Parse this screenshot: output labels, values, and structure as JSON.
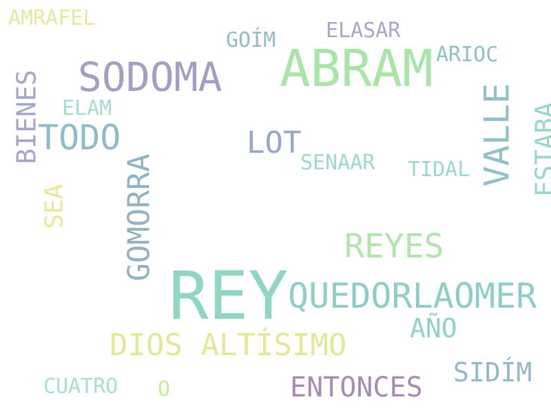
{
  "cloud": {
    "words": [
      {
        "text": "REY",
        "color": "#8fd8bc"
      },
      {
        "text": "ABRAM",
        "color": "#a8e6a8"
      },
      {
        "text": "SODOMA",
        "color": "#a39ec4"
      },
      {
        "text": "QUEDORLAOMER",
        "color": "#8ecec6"
      },
      {
        "text": "TODO",
        "color": "#8fbcc8"
      },
      {
        "text": "VALLE",
        "color": "#92bfc8"
      },
      {
        "text": "REYES",
        "color": "#b0e6ab"
      },
      {
        "text": "LOT",
        "color": "#9aa6c4"
      },
      {
        "text": "GOMORRA",
        "color": "#92b4c2"
      },
      {
        "text": "DIOS ALTÍSIMO",
        "color": "#dcec94"
      },
      {
        "text": "ENTONCES",
        "color": "#a88bb5"
      },
      {
        "text": "BIENES",
        "color": "#a6a6ca"
      },
      {
        "text": "ESTABA",
        "color": "#99d9c2"
      },
      {
        "text": "SIDÍM",
        "color": "#92bac6"
      },
      {
        "text": "AÑO",
        "color": "#93d2c1"
      },
      {
        "text": "SEA",
        "color": "#e2ec96"
      },
      {
        "text": "SENAAR",
        "color": "#99dac6"
      },
      {
        "text": "TIDAL",
        "color": "#99dac6"
      },
      {
        "text": "ELASAR",
        "color": "#a9a6c8"
      },
      {
        "text": "GOÍM",
        "color": "#92bcc4"
      },
      {
        "text": "ARIOC",
        "color": "#92bec8"
      },
      {
        "text": "ELAM",
        "color": "#a4e0c4"
      },
      {
        "text": "AMRAFEL",
        "color": "#dfed9a"
      },
      {
        "text": "CUATRO",
        "color": "#a7e3c3"
      },
      {
        "text": "O",
        "color": "#c6ea9c"
      }
    ]
  }
}
